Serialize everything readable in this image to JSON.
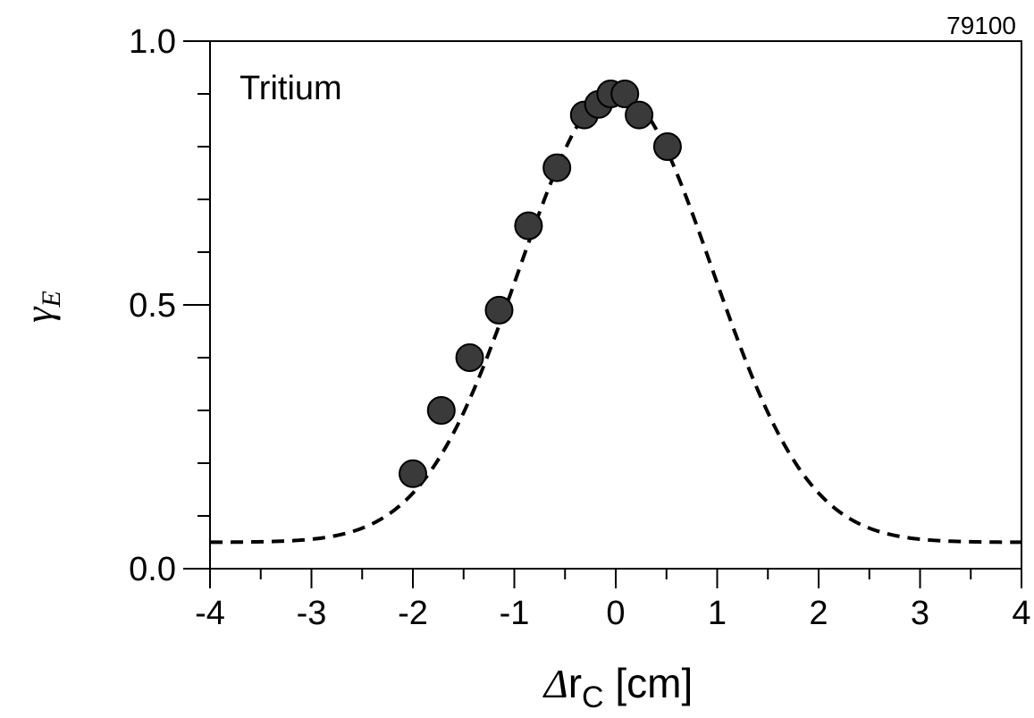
{
  "chart_data": {
    "type": "scatter",
    "title": "",
    "annotations": {
      "label": "Tritium",
      "figure_id": "79100"
    },
    "xlabel": {
      "symbol": "Δ",
      "var": "r",
      "sub": "C",
      "unit": "[cm]"
    },
    "ylabel": {
      "var": "γ",
      "sub": "E"
    },
    "xlim": [
      -4,
      4
    ],
    "ylim": [
      0,
      1
    ],
    "x_ticks": [
      -4,
      -3,
      -2,
      -1,
      0,
      1,
      2,
      3,
      4
    ],
    "x_tick_labels": [
      "-4",
      "-3",
      "-2",
      "-1",
      "0",
      "1",
      "2",
      "3",
      "4"
    ],
    "y_ticks": [
      0.0,
      0.5,
      1.0
    ],
    "y_tick_labels": [
      "0.0",
      "0.5",
      "1.0"
    ],
    "grid": false,
    "series": [
      {
        "kind": "points",
        "marker": "filled-circle",
        "color": "#3a3a3a",
        "x": [
          -2.0,
          -1.72,
          -1.44,
          -1.15,
          -0.86,
          -0.58,
          -0.31,
          -0.17,
          -0.05,
          0.09,
          0.23,
          0.51
        ],
        "y": [
          0.18,
          0.3,
          0.4,
          0.49,
          0.65,
          0.76,
          0.86,
          0.88,
          0.9,
          0.9,
          0.86,
          0.8
        ]
      },
      {
        "kind": "fit-curve",
        "style": "dashed",
        "color": "#000000",
        "model": "gaussian",
        "baseline": 0.05,
        "amplitude": 0.855,
        "center": 0.0,
        "sigma": 0.95,
        "x_range": [
          -4,
          4
        ]
      }
    ]
  }
}
